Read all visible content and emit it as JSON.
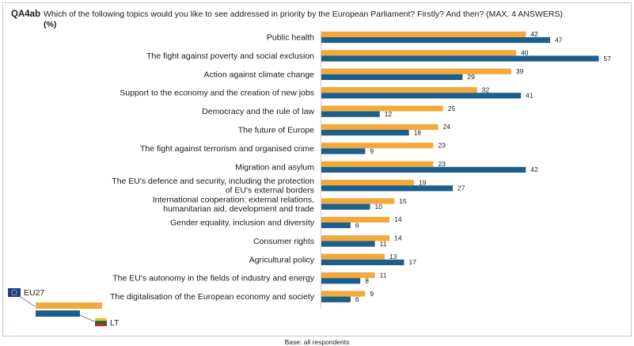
{
  "header": {
    "code": "QA4ab",
    "question": "Which of the following topics would you like to see addressed in priority by the European Parliament? Firstly? And then? (MAX. 4 ANSWERS)",
    "unit": "(%)"
  },
  "footer": {
    "base": "Base: all respondents"
  },
  "colors": {
    "eu27": "#f2a93b",
    "lt": "#1c5f8c"
  },
  "chart_data": {
    "type": "bar",
    "orientation": "horizontal",
    "categories": [
      "Public health",
      "The fight against poverty and social exclusion",
      "Action against climate change",
      "Support to the economy and the creation of new jobs",
      "Democracy and the rule of law",
      "The future of Europe",
      "The fight against terrorism and organised crime",
      "Migration and asylum",
      "The EU's defence and security, including the protection\nof EU's external borders",
      "International cooperation: external relations,\nhumanitarian aid, development and trade",
      "Gender equality, inclusion and diversity",
      "Consumer rights",
      "Agricultural policy",
      "The EU's autonomy in the fields of industry and energy",
      "The digitalisation of the European economy and society"
    ],
    "series": [
      {
        "name": "EU27",
        "color": "#f2a93b",
        "values": [
          42,
          40,
          39,
          32,
          25,
          24,
          23,
          23,
          19,
          15,
          14,
          14,
          13,
          11,
          9
        ]
      },
      {
        "name": "LT",
        "color": "#1c5f8c",
        "values": [
          47,
          57,
          29,
          41,
          12,
          18,
          9,
          42,
          27,
          10,
          6,
          11,
          17,
          8,
          6
        ]
      }
    ],
    "legend_position": "bottom-left",
    "grid": false
  }
}
